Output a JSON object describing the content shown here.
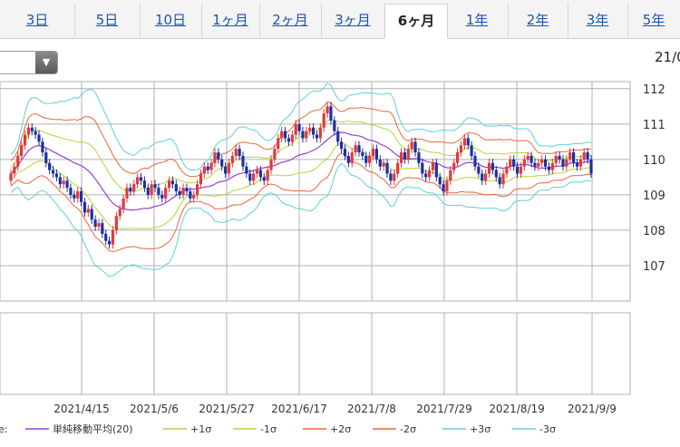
{
  "tabs": [
    {
      "label": "3日"
    },
    {
      "label": "5日"
    },
    {
      "label": "10日"
    },
    {
      "label": "1ヶ月"
    },
    {
      "label": "2ヶ月"
    },
    {
      "label": "3ヶ月"
    },
    {
      "label": "6ヶ月"
    },
    {
      "label": "1年"
    },
    {
      "label": "2年"
    },
    {
      "label": "3年"
    },
    {
      "label": "5年"
    }
  ],
  "active_tab": "6ヶ月",
  "date_label": "21/0",
  "legend_prefix": "e:",
  "colors": {
    "up": "#e0393b",
    "down": "#1d2fa0",
    "sma": "#9a3ed8",
    "sigma1": "#b6d23c",
    "sigma2": "#e8683a",
    "sigma3": "#5fd0d8",
    "grid": "#b0b0b0"
  },
  "chart_data": {
    "type": "candlestick",
    "x_ticks": [
      "2021/4/15",
      "2021/5/6",
      "2021/5/27",
      "2021/6/17",
      "2021/7/8",
      "2021/7/29",
      "2021/8/19",
      "2021/9/9"
    ],
    "y_ticks": [
      107,
      108,
      109,
      110,
      111,
      112
    ],
    "ylim": [
      106.0,
      112.2
    ],
    "legend": [
      {
        "name": "単純移動平均(20)",
        "color": "#9a3ed8",
        "style": "solid"
      },
      {
        "name": "+1σ",
        "color": "#b6d23c",
        "style": "solid"
      },
      {
        "name": "-1σ",
        "color": "#b6d23c",
        "style": "solid"
      },
      {
        "name": "+2σ",
        "color": "#e8683a",
        "style": "solid"
      },
      {
        "name": "-2σ",
        "color": "#e8683a",
        "style": "solid"
      },
      {
        "name": "+3σ",
        "color": "#5fd0d8",
        "style": "solid"
      },
      {
        "name": "-3σ",
        "color": "#5fd0d8",
        "style": "solid"
      }
    ],
    "close": [
      109.6,
      109.8,
      110.1,
      110.4,
      110.7,
      110.9,
      110.8,
      110.7,
      110.5,
      110.2,
      109.9,
      109.7,
      109.6,
      109.5,
      109.3,
      109.4,
      109.2,
      109.0,
      108.9,
      109.1,
      108.8,
      108.5,
      108.6,
      108.3,
      108.1,
      108.2,
      107.9,
      107.7,
      107.6,
      108.0,
      108.4,
      108.6,
      108.9,
      109.2,
      109.1,
      109.3,
      109.5,
      109.4,
      109.2,
      109.0,
      109.3,
      109.2,
      109.0,
      108.9,
      109.2,
      109.4,
      109.3,
      109.1,
      109.0,
      109.2,
      109.1,
      108.9,
      109.0,
      109.3,
      109.6,
      109.8,
      109.7,
      109.9,
      110.2,
      110.0,
      109.8,
      109.6,
      109.9,
      110.1,
      110.3,
      110.1,
      109.8,
      109.6,
      109.4,
      109.6,
      109.7,
      109.5,
      109.4,
      109.7,
      110.0,
      110.3,
      110.6,
      110.8,
      110.6,
      110.5,
      110.7,
      111.0,
      110.8,
      110.6,
      110.8,
      110.9,
      110.7,
      110.6,
      110.9,
      111.3,
      111.5,
      111.1,
      110.8,
      110.5,
      110.3,
      110.1,
      109.9,
      110.2,
      110.4,
      110.2,
      110.1,
      109.9,
      110.1,
      110.3,
      110.0,
      109.8,
      109.9,
      109.6,
      109.4,
      109.6,
      109.9,
      110.2,
      110.0,
      110.3,
      110.5,
      110.2,
      109.9,
      109.6,
      109.5,
      109.7,
      109.9,
      109.5,
      109.3,
      109.1,
      109.4,
      109.7,
      109.9,
      110.2,
      110.4,
      110.6,
      110.4,
      110.1,
      109.8,
      109.6,
      109.4,
      109.6,
      109.9,
      109.7,
      109.5,
      109.3,
      109.6,
      109.8,
      110.0,
      109.8,
      109.6,
      109.8,
      110.0,
      110.1,
      109.9,
      109.8,
      109.9,
      110.0,
      109.8,
      109.7,
      109.9,
      110.1,
      110.0,
      109.8,
      110.0,
      110.2,
      109.9,
      109.8,
      110.0,
      110.2,
      110.0,
      109.6
    ],
    "open": [
      109.4,
      109.6,
      109.8,
      110.1,
      110.4,
      110.7,
      110.9,
      110.8,
      110.7,
      110.5,
      110.2,
      109.9,
      109.7,
      109.6,
      109.5,
      109.3,
      109.4,
      109.2,
      109.0,
      108.9,
      109.1,
      108.8,
      108.5,
      108.6,
      108.3,
      108.1,
      108.2,
      107.9,
      107.7,
      107.6,
      108.0,
      108.4,
      108.6,
      108.9,
      109.2,
      109.1,
      109.3,
      109.5,
      109.4,
      109.2,
      109.0,
      109.3,
      109.2,
      109.0,
      108.9,
      109.2,
      109.4,
      109.3,
      109.1,
      109.0,
      109.2,
      109.1,
      108.9,
      109.0,
      109.3,
      109.6,
      109.8,
      109.7,
      109.9,
      110.2,
      110.0,
      109.8,
      109.6,
      109.9,
      110.1,
      110.3,
      110.1,
      109.8,
      109.6,
      109.4,
      109.6,
      109.7,
      109.5,
      109.4,
      109.7,
      110.0,
      110.3,
      110.6,
      110.8,
      110.6,
      110.5,
      110.7,
      111.0,
      110.8,
      110.6,
      110.8,
      110.9,
      110.7,
      110.6,
      110.9,
      111.3,
      111.5,
      111.1,
      110.8,
      110.5,
      110.3,
      110.1,
      109.9,
      110.2,
      110.4,
      110.2,
      110.1,
      109.9,
      110.1,
      110.3,
      110.0,
      109.8,
      109.9,
      109.6,
      109.4,
      109.6,
      109.9,
      110.2,
      110.0,
      110.3,
      110.5,
      110.2,
      109.9,
      109.6,
      109.5,
      109.7,
      109.9,
      109.5,
      109.3,
      109.1,
      109.4,
      109.7,
      109.9,
      110.2,
      110.4,
      110.6,
      110.4,
      110.1,
      109.8,
      109.6,
      109.4,
      109.6,
      109.9,
      109.7,
      109.5,
      109.3,
      109.6,
      109.8,
      110.0,
      109.8,
      109.6,
      109.8,
      110.0,
      110.1,
      109.9,
      109.8,
      109.9,
      110.0,
      109.8,
      109.7,
      109.9,
      110.1,
      110.0,
      109.8,
      110.0,
      110.2,
      109.9,
      109.8,
      110.0,
      110.2,
      110.0
    ]
  }
}
